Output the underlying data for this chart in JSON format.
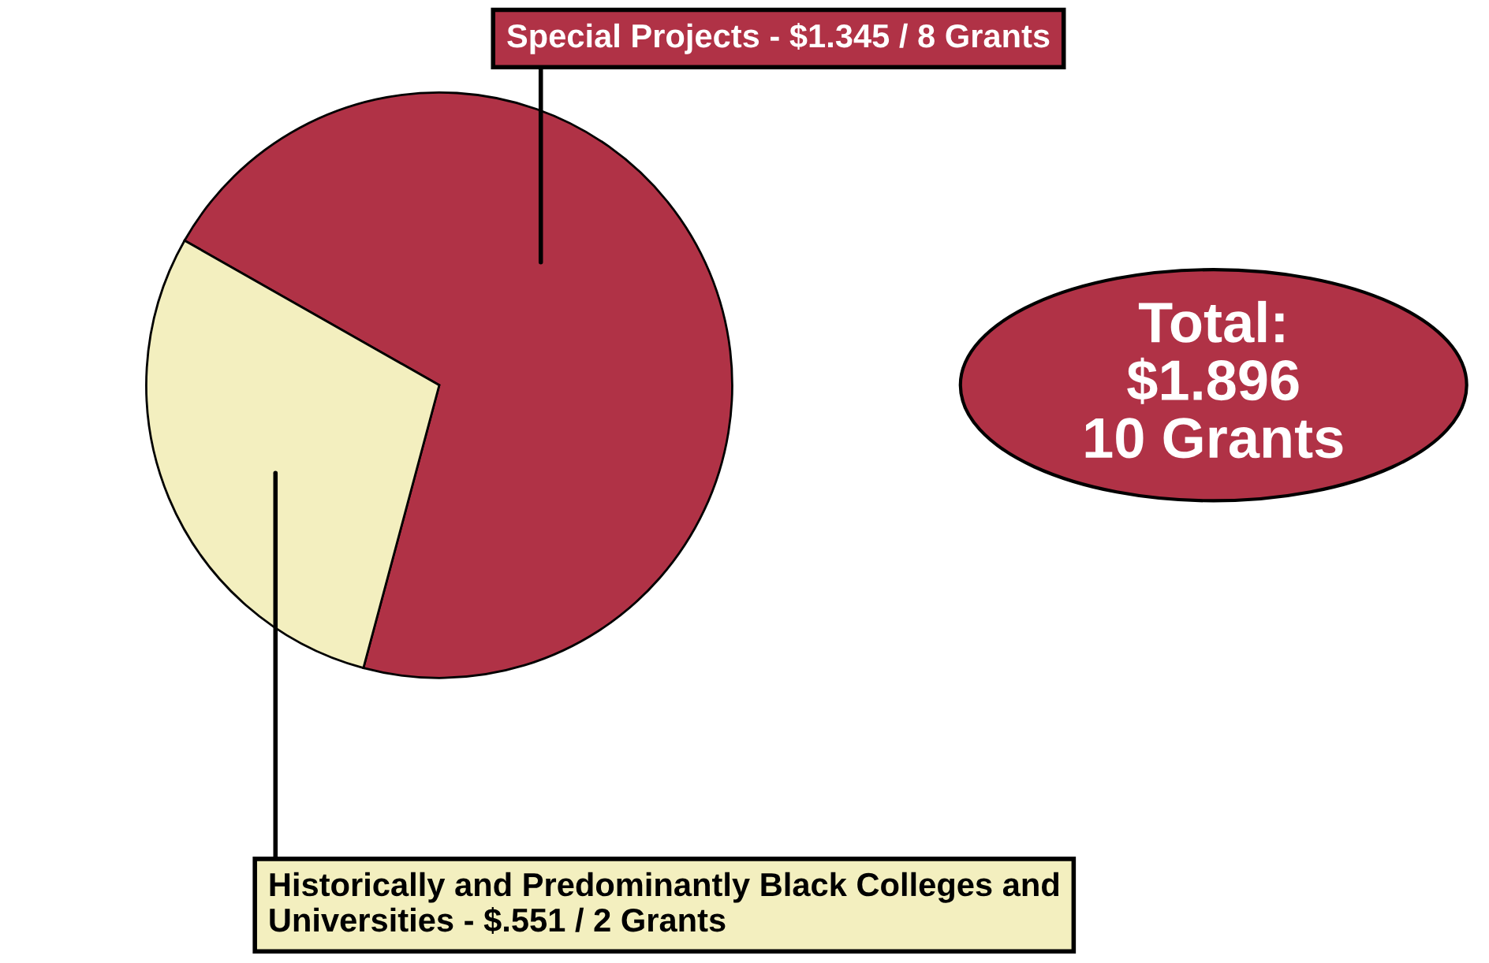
{
  "chart_data": {
    "type": "pie",
    "categories": [
      "Special Projects -",
      "Historically and Predominantly Black Colleges and Universities -"
    ],
    "value_labels": [
      "$1.345 / 8 Grants",
      "$.551 / 2 Grants"
    ],
    "values": [
      1.345,
      0.551
    ],
    "colors": [
      "#b03246",
      "#f3efbf"
    ],
    "annotations": [
      "Total:",
      "$1.896",
      "10 Grants"
    ],
    "legend": false
  }
}
